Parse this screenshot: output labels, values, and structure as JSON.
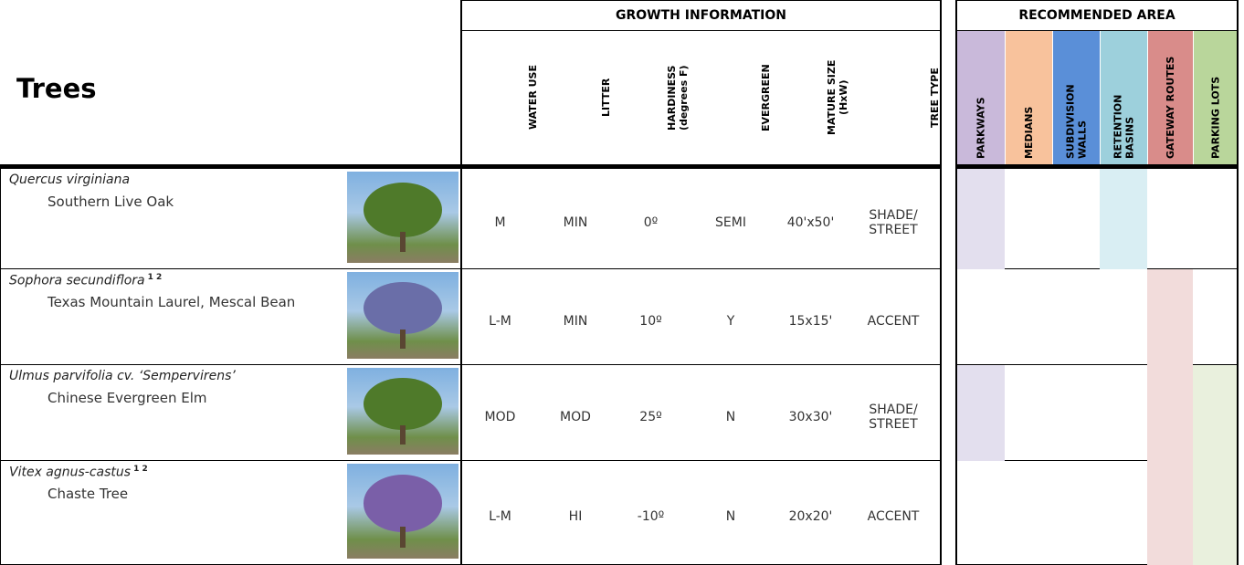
{
  "title": "Trees",
  "growth_header": "GROWTH INFORMATION",
  "area_header": "RECOMMENDED AREA",
  "growth_columns": [
    [
      "WATER USE"
    ],
    [
      "LITTER"
    ],
    [
      "HARDINESS",
      "(degrees F)"
    ],
    [
      "EVERGREEN"
    ],
    [
      "MATURE SIZE",
      "(HxW)"
    ],
    [
      "TREE TYPE"
    ]
  ],
  "area_columns": [
    {
      "label": [
        "PARKWAYS"
      ],
      "color": "#c9b9da",
      "light": "#e3dfee"
    },
    {
      "label": [
        "MEDIANS"
      ],
      "color": "#f8c29c",
      "light": "#fbe3d1"
    },
    {
      "label": [
        "SUBDIVISION",
        "WALLS"
      ],
      "color": "#5a8fd8",
      "light": "#d6e3f5"
    },
    {
      "label": [
        "RETENTION",
        "BASINS"
      ],
      "color": "#9dd0dc",
      "light": "#d9eef3"
    },
    {
      "label": [
        "GATEWAY ROUTES"
      ],
      "color": "#d98c8a",
      "light": "#f2dcdb"
    },
    {
      "label": [
        "PARKING LOTS"
      ],
      "color": "#b9d69b",
      "light": "#e9f0dd"
    }
  ],
  "rows": [
    {
      "scientific": "Quercus virginiana",
      "notes": null,
      "common": "Southern Live Oak",
      "values": [
        "M",
        "MIN",
        "0º",
        "SEMI",
        "40'x50'",
        "SHADE/ STREET"
      ],
      "areas": [
        true,
        false,
        false,
        true,
        false,
        false
      ]
    },
    {
      "scientific": "Sophora secundiflora",
      "notes": "1 2",
      "common": "Texas Mountain Laurel, Mescal Bean",
      "values": [
        "L-M",
        "MIN",
        "10º",
        "Y",
        "15x15'",
        "ACCENT"
      ],
      "areas": [
        false,
        false,
        false,
        false,
        true,
        false
      ]
    },
    {
      "scientific": "Ulmus parvifolia cv. ‘Sempervirens’",
      "notes": null,
      "common": "Chinese Evergreen Elm",
      "values": [
        "MOD",
        "MOD",
        "25º",
        "N",
        "30x30'",
        "SHADE/ STREET"
      ],
      "areas": [
        true,
        false,
        false,
        false,
        true,
        true
      ]
    },
    {
      "scientific": "Vitex agnus-castus",
      "notes": "1 2",
      "common": "Chaste Tree",
      "values": [
        "L-M",
        "HI",
        "-10º",
        "N",
        "20x20'",
        "ACCENT"
      ],
      "areas": [
        false,
        false,
        false,
        false,
        true,
        true
      ]
    }
  ]
}
